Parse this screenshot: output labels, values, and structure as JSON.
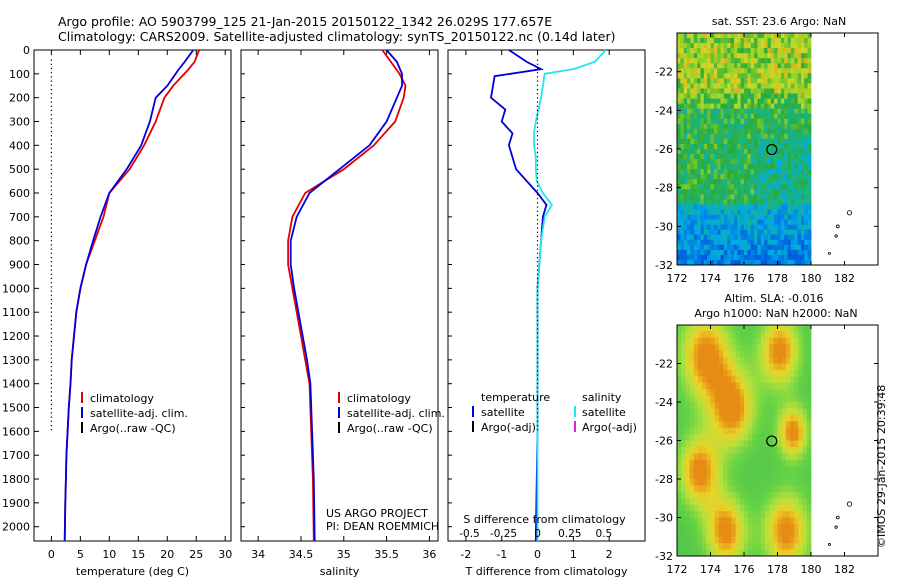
{
  "header": {
    "line1": "Argo profile: AO 5903799_125 21-Jan-2015 20150122_1342 26.029S 177.657E",
    "line2": "Climatology: CARS2009. Satellite-adjusted climatology: synTS_20150122.nc (0.14d later)"
  },
  "credit": "©IMOS 29-Jan-2015 20:39:48",
  "colors": {
    "climatology": "#e00000",
    "satellite": "#0000dd",
    "argo": "#000000",
    "sal_sat": "#22e5ee",
    "sal_argo": "#e020e0"
  },
  "chart_data": [
    {
      "type": "line",
      "id": "temperature",
      "xlabel": "temperature (deg C)",
      "xlim": [
        -3,
        31
      ],
      "xticks": [
        0,
        5,
        10,
        15,
        20,
        25,
        30
      ],
      "ylim": [
        2060,
        0
      ],
      "yticks": [
        0,
        100,
        200,
        300,
        400,
        500,
        600,
        700,
        800,
        900,
        1000,
        1100,
        1200,
        1300,
        1400,
        1500,
        1600,
        1700,
        1800,
        1900,
        2000
      ],
      "legend": [
        "climatology",
        "satellite-adj. clim.",
        "Argo(..raw -QC)"
      ],
      "series": [
        {
          "name": "climatology",
          "color": "climatology",
          "x": [
            25.5,
            24.7,
            23.7,
            21,
            19.5,
            18,
            16,
            13.5,
            10,
            9,
            7.5,
            6,
            5,
            4.3,
            3.9,
            3.5,
            3.3,
            3.0,
            2.8,
            2.6,
            2.5,
            2.4,
            2.3
          ],
          "y": [
            0,
            50,
            80,
            150,
            200,
            300,
            400,
            500,
            600,
            700,
            800,
            900,
            1000,
            1100,
            1200,
            1300,
            1400,
            1500,
            1600,
            1700,
            1800,
            1900,
            2060
          ]
        },
        {
          "name": "satellite-adj. clim.",
          "color": "satellite",
          "x": [
            24.5,
            23,
            22,
            20,
            18,
            17,
            15.5,
            13,
            10,
            8.5,
            7.2,
            6,
            5,
            4.3,
            3.9,
            3.5,
            3.3,
            3.0,
            2.8,
            2.6,
            2.5,
            2.4,
            2.3
          ],
          "y": [
            0,
            50,
            80,
            150,
            200,
            300,
            400,
            500,
            600,
            700,
            800,
            900,
            1000,
            1100,
            1200,
            1300,
            1400,
            1500,
            1600,
            1700,
            1800,
            1900,
            2060
          ]
        },
        {
          "name": "zero",
          "dotted": true,
          "x": [
            0,
            0
          ],
          "y": [
            40,
            1600
          ]
        }
      ]
    },
    {
      "type": "line",
      "id": "salinity",
      "xlabel": "salinity",
      "xlim": [
        33.8,
        36.1
      ],
      "xticks": [
        34,
        34.5,
        35,
        35.5,
        36
      ],
      "ylim": [
        2060,
        0
      ],
      "legend": [
        "climatology",
        "satellite-adj. clim.",
        "Argo(..raw -QC)"
      ],
      "series": [
        {
          "name": "climatology",
          "color": "climatology",
          "x": [
            35.45,
            35.55,
            35.65,
            35.72,
            35.7,
            35.6,
            35.35,
            35.0,
            34.55,
            34.4,
            34.35,
            34.35,
            34.4,
            34.45,
            34.5,
            34.55,
            34.6,
            34.62,
            34.64,
            34.65
          ],
          "y": [
            0,
            50,
            100,
            150,
            200,
            300,
            400,
            500,
            600,
            700,
            800,
            900,
            1000,
            1100,
            1200,
            1300,
            1400,
            1600,
            1800,
            2060
          ]
        },
        {
          "name": "satellite-adj. clim.",
          "color": "satellite",
          "x": [
            35.5,
            35.62,
            35.68,
            35.68,
            35.62,
            35.5,
            35.3,
            34.95,
            34.6,
            34.45,
            34.38,
            34.38,
            34.42,
            34.47,
            34.52,
            34.57,
            34.61,
            34.63,
            34.65,
            34.66
          ],
          "y": [
            0,
            50,
            100,
            150,
            200,
            300,
            400,
            500,
            600,
            700,
            800,
            900,
            1000,
            1100,
            1200,
            1300,
            1400,
            1600,
            1800,
            2060
          ]
        }
      ],
      "annotation": [
        "US ARGO PROJECT",
        "PI: DEAN ROEMMICH"
      ]
    },
    {
      "type": "line",
      "id": "difference",
      "xlabel": "T difference from climatology",
      "xlabel_top": "S difference from climatology",
      "xlim": [
        -2.5,
        3.0
      ],
      "xticks": [
        -2,
        -1,
        0,
        1,
        2
      ],
      "xticks_top": [
        -0.5,
        -0.25,
        0,
        0.25,
        0.5
      ],
      "ylim": [
        2060,
        0
      ],
      "legend_left_title": "temperature",
      "legend_right_title": "salinity",
      "legend_left": [
        "satellite",
        "Argo(-adj)"
      ],
      "legend_right": [
        "satellite",
        "Argo(-adj)"
      ],
      "series": [
        {
          "name": "temperature satellite",
          "color": "satellite",
          "x": [
            -0.8,
            -0.3,
            0.1,
            -1.2,
            -1.3,
            -0.9,
            -1.0,
            -0.7,
            -0.8,
            -0.7,
            -0.6,
            -0.3,
            0.0,
            0.25,
            0.15,
            0.1,
            0.05,
            0.0,
            0.0,
            0.0,
            0.0,
            0.0,
            -0.05
          ],
          "y": [
            0,
            50,
            80,
            110,
            200,
            250,
            300,
            350,
            400,
            450,
            500,
            550,
            600,
            650,
            700,
            800,
            900,
            1000,
            1100,
            1200,
            1400,
            1600,
            2060
          ]
        },
        {
          "name": "salinity satellite",
          "color": "sal_sat",
          "x": [
            1.9,
            1.6,
            1.0,
            0.2,
            0.1,
            -0.05,
            -0.1,
            -0.1,
            -0.05,
            -0.05,
            -0.02,
            0.15,
            0.4,
            0.2,
            0.1,
            0.05,
            0.0,
            0.0,
            0.0,
            0.0
          ],
          "y": [
            0,
            50,
            80,
            100,
            200,
            300,
            350,
            400,
            450,
            500,
            550,
            600,
            650,
            700,
            800,
            900,
            1000,
            1200,
            1600,
            2060
          ]
        },
        {
          "name": "zero",
          "dotted": true,
          "x": [
            0,
            0
          ],
          "y": [
            40,
            1600
          ]
        }
      ]
    },
    {
      "type": "heatmap",
      "id": "sst",
      "title": "sat. SST: 23.6 Argo: NaN",
      "xlim": [
        172,
        184
      ],
      "xticks": [
        172,
        174,
        176,
        178,
        180,
        182
      ],
      "ylim": [
        -32,
        -20
      ],
      "yticks": [
        -32,
        -30,
        -28,
        -26,
        -24,
        -22
      ],
      "data_xlim": [
        172,
        180
      ],
      "marker": [
        177.657,
        -26.029
      ]
    },
    {
      "type": "heatmap",
      "id": "sla",
      "title1": "Altim. SLA: -0.016",
      "title2": "Argo h1000: NaN h2000: NaN",
      "xlim": [
        172,
        184
      ],
      "xticks": [
        172,
        174,
        176,
        178,
        180,
        182
      ],
      "ylim": [
        -32,
        -20
      ],
      "yticks": [
        -32,
        -30,
        -28,
        -26,
        -24,
        -22
      ],
      "data_xlim": [
        172,
        180
      ],
      "marker": [
        177.657,
        -26.029
      ]
    }
  ]
}
